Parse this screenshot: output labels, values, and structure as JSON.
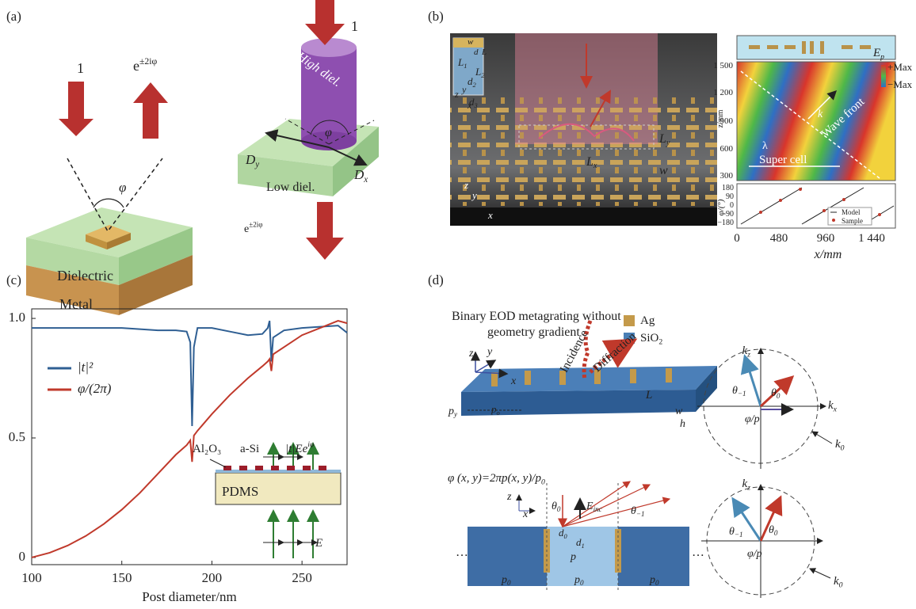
{
  "figure": {
    "panel_labels": [
      "(a)",
      "(b)",
      "(c)",
      "(d)"
    ],
    "a_labels": [
      {
        "t": "1"
      },
      {
        "t": "e",
        "sup": "±2iφ"
      },
      {
        "t": "φ"
      },
      {
        "t": "Dielectric"
      },
      {
        "t": "Metal"
      },
      {
        "t": "1"
      },
      {
        "t": "High diel."
      },
      {
        "t": "φ"
      },
      {
        "t": "D",
        "sub": "y"
      },
      {
        "t": "D",
        "sub": "x"
      },
      {
        "t": "Low diel."
      },
      {
        "t": "e",
        "sup": "±2iφ"
      }
    ],
    "b_labels": [
      {
        "t": "w"
      },
      {
        "t": "d"
      },
      {
        "t": "L"
      },
      {
        "t": "L",
        "sub": "1"
      },
      {
        "t": "L",
        "sub": "2"
      },
      {
        "t": "d",
        "sub": "2"
      },
      {
        "t": "d",
        "sub": "3"
      },
      {
        "t": "z"
      },
      {
        "t": "y"
      },
      {
        "t": "x"
      },
      {
        "t": "z"
      },
      {
        "t": "y"
      },
      {
        "t": "x"
      },
      {
        "t": "L",
        "sub": "y"
      },
      {
        "t": "L",
        "sub": "x"
      },
      {
        "t": "w"
      },
      {
        "t": "E",
        "sub": "p"
      },
      {
        "t": "+Max"
      },
      {
        "t": "−Max"
      },
      {
        "t": "λ"
      },
      {
        "t": "k"
      },
      {
        "t": "Wave front"
      },
      {
        "t": "Super cell"
      },
      {
        "t": "Model"
      },
      {
        "t": "Sample"
      },
      {
        "t": "1 500"
      },
      {
        "t": "1 200"
      },
      {
        "t": "900"
      },
      {
        "t": "600"
      },
      {
        "t": "300"
      },
      {
        "t": "z/mm"
      },
      {
        "t": "180"
      },
      {
        "t": "90"
      },
      {
        "t": "0"
      },
      {
        "t": "−90"
      },
      {
        "t": "−180"
      },
      {
        "t": "φ/(°)"
      },
      {
        "t": "0"
      },
      {
        "t": "480"
      },
      {
        "t": "960"
      },
      {
        "t": "1 440"
      },
      {
        "t": "x/mm"
      }
    ],
    "d_labels": [
      {
        "t": "Binary EOD metagrating without"
      },
      {
        "t": "geometry gradient"
      },
      {
        "t": "Ag"
      },
      {
        "t": "SiO",
        "sub": "2"
      },
      {
        "t": "z"
      },
      {
        "t": "y"
      },
      {
        "t": "x"
      },
      {
        "t": "Incidence"
      },
      {
        "t": "Diffraction"
      },
      {
        "t": "p",
        "sub": "y"
      },
      {
        "t": "p",
        "sub": "o"
      },
      {
        "t": "L"
      },
      {
        "t": "w"
      },
      {
        "t": "h"
      },
      {
        "t": "k",
        "sub": "z"
      },
      {
        "t": "θ",
        "sub": "−1"
      },
      {
        "t": "θ",
        "sub": "0"
      },
      {
        "t": "k",
        "sub": "x"
      },
      {
        "t": "φ/p"
      },
      {
        "t": "k",
        "sub": "0"
      },
      {
        "t": "φ (x, y)=2πp(x, y)/p",
        "sub": "0"
      },
      {
        "t": "z"
      },
      {
        "t": "x"
      },
      {
        "t": "θ",
        "sub": "0"
      },
      {
        "t": "E",
        "sub": "inc"
      },
      {
        "t": "θ",
        "sub": "−1"
      },
      {
        "t": "d",
        "sub": "0"
      },
      {
        "t": "d",
        "sub": "1"
      },
      {
        "t": "p"
      },
      {
        "t": "p",
        "sub": "0"
      },
      {
        "t": "p",
        "sub": "0"
      },
      {
        "t": "p",
        "sub": "0"
      },
      {
        "t": "k",
        "sub": "z"
      },
      {
        "t": "θ",
        "sub": "−1"
      },
      {
        "t": "θ",
        "sub": "0"
      },
      {
        "t": "φ/p"
      },
      {
        "t": "k",
        "sub": "0"
      }
    ]
  },
  "chart_data": {
    "type": "line",
    "x_label": "Post diameter/nm",
    "x": [
      100,
      110,
      120,
      130,
      140,
      150,
      160,
      170,
      180,
      186,
      188,
      189,
      190,
      192,
      200,
      210,
      220,
      228,
      231,
      232,
      233,
      234,
      240,
      250,
      260,
      270,
      275
    ],
    "series": [
      {
        "name": "|t|²",
        "color": "#2f5f93",
        "values": [
          0.96,
          0.96,
          0.96,
          0.96,
          0.96,
          0.96,
          0.955,
          0.95,
          0.95,
          0.945,
          0.9,
          0.55,
          0.88,
          0.96,
          0.96,
          0.945,
          0.93,
          0.935,
          0.96,
          0.99,
          0.82,
          0.92,
          0.95,
          0.96,
          0.965,
          0.97,
          0.94
        ]
      },
      {
        "name": "φ/(2π)",
        "color": "#c0392b",
        "values": [
          0,
          0.02,
          0.05,
          0.09,
          0.14,
          0.2,
          0.27,
          0.35,
          0.43,
          0.47,
          0.49,
          0.4,
          0.51,
          0.53,
          0.6,
          0.68,
          0.75,
          0.8,
          0.82,
          0.83,
          0.78,
          0.85,
          0.88,
          0.93,
          0.96,
          0.99,
          0.98
        ]
      }
    ],
    "xlim": [
      100,
      275
    ],
    "xticks": [
      100,
      150,
      200,
      250
    ],
    "ylim": [
      -0.03,
      1.04
    ],
    "yticks": [
      0,
      0.5,
      {
        "value": 1,
        "label": "1.0"
      }
    ],
    "annotations": [
      {
        "t": "Al₂O₃"
      },
      {
        "t": "a-Si"
      },
      {
        "t": "|t|Ee",
        "sup": "iφ"
      },
      {
        "t": "PDMS"
      },
      {
        "t": "E"
      }
    ]
  }
}
